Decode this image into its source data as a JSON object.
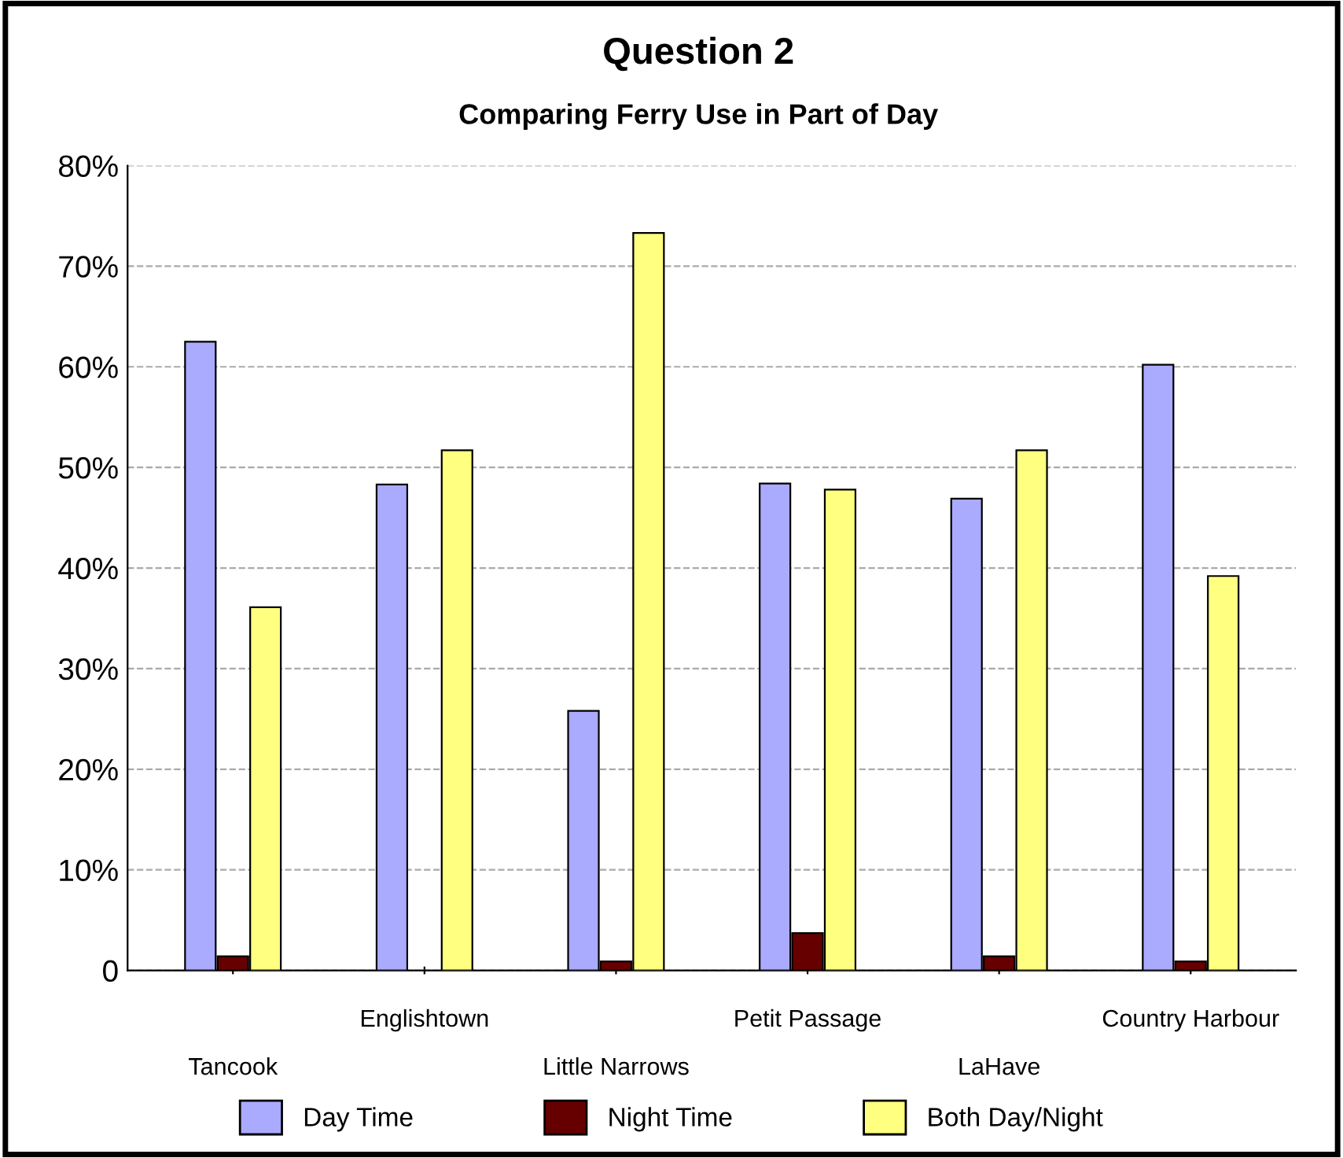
{
  "chart_data": {
    "type": "bar",
    "title": "Question 2",
    "subtitle": "Comparing Ferry Use in Part of Day",
    "categories": [
      "Tancook",
      "Englishtown",
      "Little Narrows",
      "Petit Passage",
      "LaHave",
      "Country Harbour"
    ],
    "series": [
      {
        "name": "Day Time",
        "color": "#aaaaff",
        "values": [
          62.5,
          48.3,
          25.8,
          48.4,
          46.9,
          60.2
        ]
      },
      {
        "name": "Night Time",
        "color": "#660000",
        "values": [
          1.4,
          null,
          0.9,
          3.7,
          1.4,
          0.9
        ]
      },
      {
        "name": "Both Day/Night",
        "color": "#ffff80",
        "values": [
          36.1,
          51.7,
          73.3,
          47.8,
          51.7,
          39.2
        ]
      }
    ],
    "ylim": [
      0,
      80
    ],
    "yticks": [
      {
        "value": 0,
        "label": "0"
      },
      {
        "value": 10,
        "label": "10%"
      },
      {
        "value": 20,
        "label": "20%"
      },
      {
        "value": 30,
        "label": "30%"
      },
      {
        "value": 40,
        "label": "40%"
      },
      {
        "value": 50,
        "label": "50%"
      },
      {
        "value": 60,
        "label": "60%"
      },
      {
        "value": 70,
        "label": "70%"
      },
      {
        "value": 80,
        "label": "80%"
      }
    ],
    "grid": "y",
    "legend": "bottom"
  }
}
